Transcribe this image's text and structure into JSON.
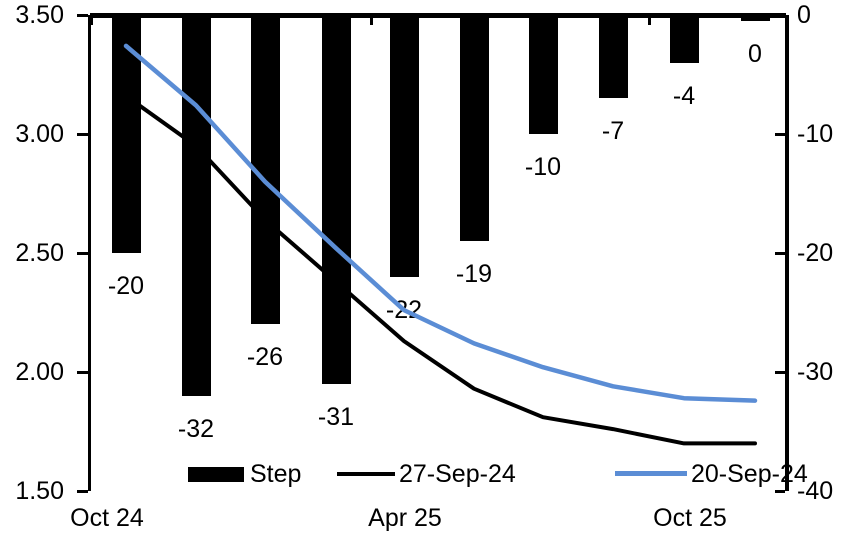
{
  "chart_data": {
    "type": "combo",
    "title": "",
    "bar_series": {
      "name": "Step",
      "axis": "right",
      "color": "#000000",
      "values": [
        -20,
        -32,
        -26,
        -31,
        -22,
        -19,
        -10,
        -7,
        -4,
        0
      ],
      "data_labels": [
        "-20",
        "-32",
        "-26",
        "-31",
        "-22",
        "-19",
        "-10",
        "-7",
        "-4",
        "0"
      ]
    },
    "line_series": [
      {
        "name": "27-Sep-24",
        "axis": "left",
        "color": "#000000",
        "stroke_width": 4,
        "values": [
          3.16,
          2.95,
          2.64,
          2.38,
          2.13,
          1.93,
          1.81,
          1.76,
          1.7,
          1.7
        ]
      },
      {
        "name": "20-Sep-24",
        "axis": "left",
        "color": "#5B8DD5",
        "stroke_width": 4.5,
        "values": [
          3.37,
          3.12,
          2.8,
          2.52,
          2.26,
          2.12,
          2.02,
          1.94,
          1.89,
          1.88
        ]
      }
    ],
    "left_axis": {
      "range": [
        1.5,
        3.5
      ],
      "tick_labels": [
        "3.50",
        "3.00",
        "2.50",
        "2.00",
        "1.50"
      ],
      "tick_values": [
        3.5,
        3.0,
        2.5,
        2.0,
        1.5
      ]
    },
    "right_axis": {
      "range": [
        -40,
        0
      ],
      "tick_labels": [
        "0",
        "-10",
        "-20",
        "-30",
        "-40"
      ],
      "tick_values": [
        0,
        -10,
        -20,
        -30,
        -40
      ]
    },
    "x_axis": {
      "labels": [
        "Oct 24",
        "Apr 25",
        "Oct 25"
      ]
    },
    "grid": false,
    "legend_position": "bottom"
  },
  "legend": {
    "items": [
      {
        "label": "Step",
        "type": "bar",
        "color": "#000000"
      },
      {
        "label": "27-Sep-24",
        "type": "line",
        "color": "#000000"
      },
      {
        "label": "20-Sep-24",
        "type": "line",
        "color": "#5B8DD5"
      }
    ]
  },
  "colors": {
    "bar": "#000000",
    "line_black": "#000000",
    "line_blue": "#5B8DD5",
    "axis": "#000000",
    "background": "#FFFFFF"
  }
}
